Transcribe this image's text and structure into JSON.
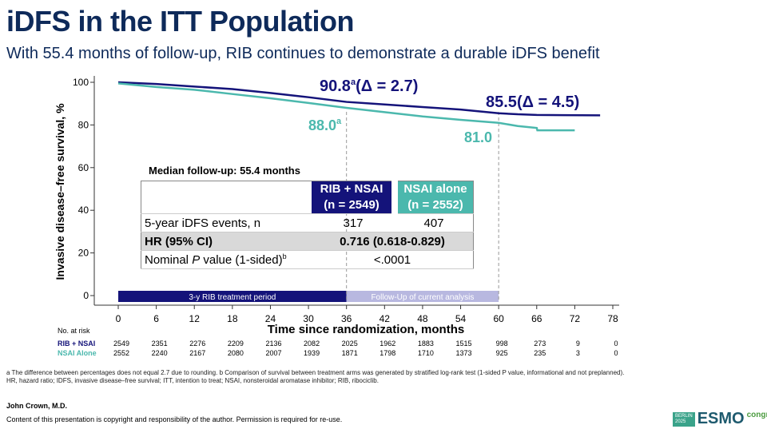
{
  "slide": {
    "title": "iDFS in the ITT Population",
    "subtitle": "With 55.4 months of follow-up, RIB continues to demonstrate a durable iDFS benefit",
    "author": "John Crown, M.D.",
    "copyright": "Content of this presentation is copyright and responsibility of the author. Permission is required for re-use.",
    "footnote1": "a The difference between percentages does not equal 2.7 due to rounding. b Comparison of survival between treatment arms was generated by stratified log-rank test (1-sided P value, informational and not preplanned).",
    "footnote2": "HR, hazard ratio; IDFS, invasive disease–free survival; ITT, intention to treat; NSAI, nonsteroidal aromatase inhibitor; RIB, ribociclib.",
    "logo": {
      "city": "BERLIN",
      "year": "2025",
      "name": "ESMO",
      "suffix": "congress"
    }
  },
  "chart_data": {
    "type": "line",
    "xlabel": "Time since randomization, months",
    "ylabel": "Invasive disease–free survival, %",
    "xlim": [
      0,
      78
    ],
    "ylim": [
      0,
      100
    ],
    "xticks": [
      0,
      6,
      12,
      18,
      24,
      30,
      36,
      42,
      48,
      54,
      60,
      66,
      72,
      78
    ],
    "yticks": [
      0,
      20,
      40,
      60,
      80,
      100
    ],
    "series": [
      {
        "name": "RIB + NSAI",
        "color": "#14137a",
        "x": [
          0,
          6,
          12,
          18,
          24,
          30,
          36,
          42,
          48,
          54,
          60,
          63,
          66,
          70,
          76
        ],
        "y": [
          100,
          99.2,
          98,
          96.8,
          95,
          93,
          90.8,
          89.6,
          88.4,
          87.2,
          85.5,
          85,
          84.7,
          84.6,
          84.5
        ]
      },
      {
        "name": "NSAI Alone",
        "color": "#4bb8ad",
        "x": [
          0,
          6,
          12,
          18,
          24,
          30,
          36,
          42,
          48,
          54,
          60,
          63,
          66,
          66.1,
          72
        ],
        "y": [
          99.5,
          97.8,
          96.5,
          94.5,
          92.5,
          90.3,
          88,
          86,
          84,
          82.4,
          81,
          79.5,
          78.6,
          77.5,
          77.5
        ]
      }
    ],
    "annotations": [
      {
        "text": "90.8",
        "sup": "a",
        "extra": "(Δ = 2.7)",
        "color": "#14137a"
      },
      {
        "text": "85.5",
        "extra": "(Δ = 4.5)",
        "color": "#14137a"
      },
      {
        "text": "88.0",
        "sup": "a",
        "color": "#4bb8ad"
      },
      {
        "text": "81.0",
        "color": "#4bb8ad"
      }
    ],
    "reference_lines_x": [
      36,
      60
    ],
    "periods": [
      {
        "label": "3-y RIB treatment period",
        "from": 0,
        "to": 36,
        "color": "#14137a"
      },
      {
        "label": "Follow-Up of current analysis",
        "from": 36,
        "to": 60,
        "color": "#b8b8e0"
      }
    ],
    "risk_table": {
      "label": "No. at risk",
      "rows": [
        {
          "name": "RIB + NSAI",
          "values": [
            "2549",
            "2351",
            "2276",
            "2209",
            "2136",
            "2082",
            "2025",
            "1962",
            "1883",
            "1515",
            "998",
            "273",
            "9",
            "0"
          ]
        },
        {
          "name": "NSAI Alone",
          "values": [
            "2552",
            "2240",
            "2167",
            "2080",
            "2007",
            "1939",
            "1871",
            "1798",
            "1710",
            "1373",
            "925",
            "235",
            "3",
            "0"
          ]
        }
      ]
    },
    "inset_table": {
      "caption": "Median follow-up: 55.4 months",
      "col1": "RIB + NSAI",
      "col1n": "(n = 2549)",
      "col2": "NSAI alone",
      "col2n": "(n = 2552)",
      "row1": {
        "label": "5-year iDFS events, n",
        "v1": "317",
        "v2": "407"
      },
      "row2": {
        "label": "HR (95% CI)",
        "v": "0.716 (0.618-0.829)"
      },
      "row3": {
        "label_pre": "Nominal ",
        "label_p": "P",
        "label_post": " value (1-sided)",
        "sup": "b",
        "v": "<.0001"
      }
    }
  }
}
